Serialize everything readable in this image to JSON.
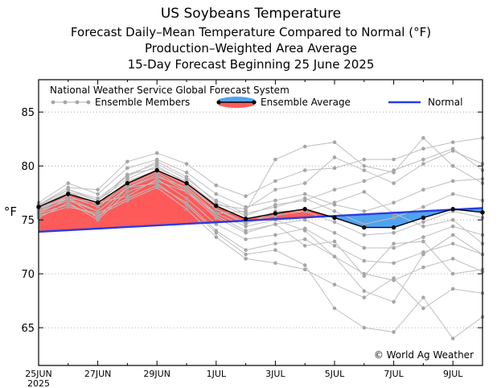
{
  "chart_data": {
    "type": "line",
    "title": "US Soybeans Temperature",
    "subtitle_lines": [
      "Forecast Daily–Mean Temperature Compared to Normal (°F)",
      "Production–Weighted Area Average",
      "15-Day Forecast Beginning 25 June 2025"
    ],
    "ylabel": "°F",
    "xlabel": "",
    "ylim": [
      61.5,
      88
    ],
    "yticks": [
      65,
      70,
      75,
      80,
      85
    ],
    "x_tick_labels": [
      "25JUN",
      "27JUN",
      "29JUN",
      "1JUL",
      "3JUL",
      "5JUL",
      "7JUL",
      "9JUL"
    ],
    "x_tick_sublabel": "2025",
    "days": [
      "25JUN",
      "26JUN",
      "27JUN",
      "28JUN",
      "29JUN",
      "30JUN",
      "1JUL",
      "2JUL",
      "3JUL",
      "4JUL",
      "5JUL",
      "6JUL",
      "7JUL",
      "8JUL",
      "9JUL",
      "10JUL"
    ],
    "legend": {
      "header": "National Weather Service Global Forecast System",
      "members_label": "Ensemble Members",
      "average_label": "Ensemble Average",
      "normal_label": "Normal"
    },
    "copyright": "© World Ag Weather",
    "colors": {
      "above_normal_fill": "#ff5a5a",
      "below_normal_fill": "#4da3f2",
      "normal_line": "#2b3be0",
      "average_line": "#000000",
      "member_line": "#bfbfbf",
      "member_marker": "#a6a6a6",
      "grid": "#999999"
    },
    "normal_range": [
      73.9,
      76.1
    ],
    "ensemble_average": [
      76.2,
      77.4,
      76.6,
      78.4,
      79.6,
      78.4,
      76.3,
      75.1,
      75.6,
      76.0,
      75.2,
      74.3,
      74.3,
      75.2,
      76.0,
      75.7
    ],
    "ensemble_members": [
      [
        76.6,
        78.4,
        77.4,
        79.8,
        80.6,
        79.4,
        77.4,
        76.2,
        76.8,
        77.4,
        76.4,
        75.8,
        76.6,
        77.8,
        78.6,
        78.8
      ],
      [
        76.3,
        77.8,
        76.8,
        79.2,
        80.2,
        78.8,
        76.8,
        75.6,
        76.2,
        77.0,
        75.8,
        74.6,
        75.2,
        76.2,
        77.4,
        76.8
      ],
      [
        76.0,
        77.2,
        76.2,
        78.6,
        79.6,
        78.2,
        76.0,
        74.8,
        75.4,
        75.8,
        74.8,
        73.6,
        73.8,
        74.8,
        75.8,
        75.2
      ],
      [
        75.8,
        76.8,
        75.8,
        78.0,
        79.2,
        77.6,
        75.2,
        73.8,
        74.6,
        75.0,
        73.8,
        72.4,
        72.4,
        73.4,
        74.4,
        73.6
      ],
      [
        76.2,
        77.0,
        76.6,
        77.2,
        78.8,
        77.0,
        74.6,
        73.2,
        73.6,
        74.2,
        72.6,
        71.2,
        71.0,
        72.0,
        72.8,
        71.8
      ],
      [
        75.4,
        76.2,
        75.6,
        77.0,
        78.2,
        76.6,
        74.0,
        72.2,
        72.8,
        73.2,
        71.6,
        70.0,
        69.4,
        70.6,
        71.4,
        70.2
      ],
      [
        76.4,
        78.0,
        77.8,
        80.4,
        81.2,
        80.2,
        78.2,
        77.2,
        78.6,
        79.6,
        79.8,
        80.6,
        80.6,
        81.6,
        82.2,
        82.6
      ],
      [
        76.0,
        77.6,
        76.4,
        79.2,
        79.8,
        78.6,
        76.4,
        76.0,
        77.8,
        78.4,
        80.8,
        79.6,
        78.4,
        80.2,
        81.4,
        80.2
      ],
      [
        75.6,
        77.0,
        75.2,
        78.0,
        79.0,
        78.0,
        75.6,
        75.8,
        80.6,
        81.8,
        82.2,
        80.0,
        79.4,
        82.6,
        80.0,
        78.4
      ],
      [
        75.2,
        76.6,
        75.0,
        77.6,
        78.6,
        77.6,
        75.6,
        74.4,
        75.0,
        74.0,
        71.6,
        68.4,
        67.4,
        71.8,
        73.6,
        71.8
      ],
      [
        76.0,
        77.0,
        75.8,
        78.0,
        78.4,
        76.4,
        73.8,
        71.8,
        72.2,
        70.8,
        66.8,
        65.0,
        64.6,
        67.8,
        64.0,
        66.0
      ],
      [
        75.6,
        76.4,
        75.4,
        76.8,
        78.0,
        76.0,
        73.4,
        71.4,
        71.0,
        70.4,
        69.0,
        67.8,
        69.6,
        66.8,
        68.6,
        68.2
      ],
      [
        76.2,
        77.6,
        76.8,
        78.8,
        80.0,
        78.4,
        76.0,
        74.6,
        75.8,
        75.8,
        76.6,
        77.6,
        75.6,
        74.4,
        75.0,
        72.8
      ],
      [
        75.8,
        77.2,
        76.2,
        78.2,
        79.4,
        77.8,
        75.4,
        74.0,
        74.6,
        72.6,
        73.0,
        69.8,
        72.8,
        73.0,
        70.0,
        70.4
      ],
      [
        76.4,
        77.8,
        77.0,
        79.0,
        80.4,
        79.0,
        76.6,
        75.4,
        76.4,
        76.8,
        77.8,
        78.6,
        79.6,
        80.6,
        81.6,
        79.6
      ]
    ]
  }
}
